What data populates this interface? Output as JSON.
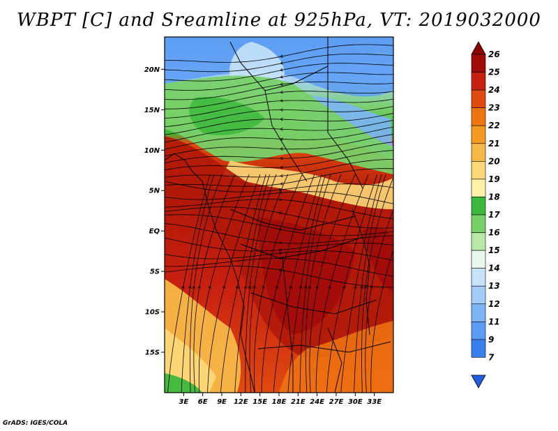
{
  "title": "WBPT [C] and Sreamline at 925hPa, VT: 2019032000",
  "credit": "GrADS: IGES/COLA",
  "map": {
    "lon_range": [
      0,
      36
    ],
    "lat_range": [
      -20,
      24
    ],
    "lat_ticks": [
      "20N",
      "15N",
      "10N",
      "5N",
      "EQ",
      "5S",
      "10S",
      "15S"
    ],
    "lat_tick_values": [
      20,
      15,
      10,
      5,
      0,
      -5,
      -10,
      -15
    ],
    "lon_ticks": [
      "3E",
      "6E",
      "9E",
      "12E",
      "15E",
      "18E",
      "21E",
      "24E",
      "27E",
      "30E",
      "33E"
    ],
    "lon_tick_values": [
      3,
      6,
      9,
      12,
      15,
      18,
      21,
      24,
      27,
      30,
      33
    ]
  },
  "colorbar": {
    "labels": [
      "7",
      "9",
      "11",
      "12",
      "13",
      "14",
      "15",
      "16",
      "17",
      "18",
      "19",
      "20",
      "21",
      "22",
      "23",
      "24",
      "25",
      "26"
    ],
    "colors": [
      "#2060e0",
      "#3a7ff0",
      "#5a9cf5",
      "#7db5f7",
      "#a3cdf8",
      "#c7e3fa",
      "#e8f8f0",
      "#b8e8a8",
      "#78d068",
      "#3cb83c",
      "#fff2a8",
      "#fcd878",
      "#f8b848",
      "#f49a20",
      "#ef7510",
      "#e04a10",
      "#c82010",
      "#a00a08",
      "#8a0000"
    ]
  }
}
